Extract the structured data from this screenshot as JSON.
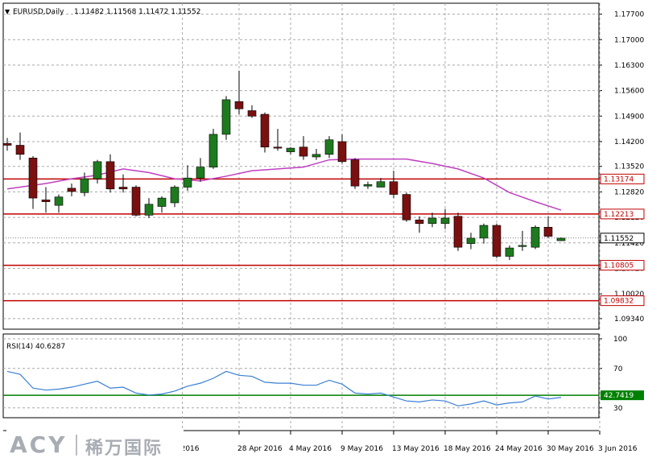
{
  "header": {
    "symbol_label": "EURUSD,Daily",
    "ohlc_label": "1.11482 1.11568 1.11472 1.11552",
    "arrow_glyph": "▼"
  },
  "chart_data": {
    "type": "candlestick",
    "symbol": "EURUSD",
    "timeframe": "Daily",
    "price_axis": {
      "range": [
        1.0905,
        1.18
      ],
      "ticks": [
        "1.17700",
        "1.17000",
        "1.16300",
        "1.15600",
        "1.14900",
        "1.14200",
        "1.13520",
        "1.12820",
        "1.12120",
        "1.11420",
        "1.10720",
        "1.10020",
        "1.09340"
      ]
    },
    "x_axis": {
      "labels": [
        {
          "text": "2016",
          "index": 13.6
        },
        {
          "text": "28 Apr 2016",
          "index": 18
        },
        {
          "text": "4 May 2016",
          "index": 22
        },
        {
          "text": "9 May 2016",
          "index": 26
        },
        {
          "text": "13 May 2016",
          "index": 30
        },
        {
          "text": "18 May 2016",
          "index": 34
        },
        {
          "text": "24 May 2016",
          "index": 38
        },
        {
          "text": "30 May 2016",
          "index": 42
        },
        {
          "text": "3 Jun 2016",
          "index": 46
        }
      ]
    },
    "candles": [
      {
        "o": 1.1415,
        "h": 1.143,
        "l": 1.1395,
        "c": 1.141
      },
      {
        "o": 1.141,
        "h": 1.1445,
        "l": 1.137,
        "c": 1.1385
      },
      {
        "o": 1.1375,
        "h": 1.138,
        "l": 1.1235,
        "c": 1.1265
      },
      {
        "o": 1.126,
        "h": 1.1295,
        "l": 1.1225,
        "c": 1.1255
      },
      {
        "o": 1.1245,
        "h": 1.1275,
        "l": 1.1225,
        "c": 1.1268
      },
      {
        "o": 1.1292,
        "h": 1.1305,
        "l": 1.127,
        "c": 1.1283
      },
      {
        "o": 1.128,
        "h": 1.1335,
        "l": 1.127,
        "c": 1.1318
      },
      {
        "o": 1.1318,
        "h": 1.137,
        "l": 1.1305,
        "c": 1.1365
      },
      {
        "o": 1.1365,
        "h": 1.1385,
        "l": 1.128,
        "c": 1.129
      },
      {
        "o": 1.1295,
        "h": 1.133,
        "l": 1.128,
        "c": 1.129
      },
      {
        "o": 1.1295,
        "h": 1.13,
        "l": 1.1215,
        "c": 1.1218
      },
      {
        "o": 1.1218,
        "h": 1.1265,
        "l": 1.121,
        "c": 1.1248
      },
      {
        "o": 1.1242,
        "h": 1.127,
        "l": 1.1225,
        "c": 1.1265
      },
      {
        "o": 1.1252,
        "h": 1.13,
        "l": 1.124,
        "c": 1.1295
      },
      {
        "o": 1.1295,
        "h": 1.1355,
        "l": 1.1285,
        "c": 1.132
      },
      {
        "o": 1.132,
        "h": 1.1375,
        "l": 1.131,
        "c": 1.135
      },
      {
        "o": 1.135,
        "h": 1.1455,
        "l": 1.1345,
        "c": 1.144
      },
      {
        "o": 1.144,
        "h": 1.1545,
        "l": 1.1425,
        "c": 1.1535
      },
      {
        "o": 1.153,
        "h": 1.1615,
        "l": 1.1495,
        "c": 1.151
      },
      {
        "o": 1.1505,
        "h": 1.152,
        "l": 1.1485,
        "c": 1.149
      },
      {
        "o": 1.1495,
        "h": 1.15,
        "l": 1.139,
        "c": 1.1405
      },
      {
        "o": 1.1405,
        "h": 1.1455,
        "l": 1.1395,
        "c": 1.1402
      },
      {
        "o": 1.1392,
        "h": 1.1405,
        "l": 1.1385,
        "c": 1.1402
      },
      {
        "o": 1.1405,
        "h": 1.1435,
        "l": 1.137,
        "c": 1.138
      },
      {
        "o": 1.1378,
        "h": 1.14,
        "l": 1.137,
        "c": 1.1385
      },
      {
        "o": 1.1385,
        "h": 1.1435,
        "l": 1.1375,
        "c": 1.1425
      },
      {
        "o": 1.142,
        "h": 1.144,
        "l": 1.136,
        "c": 1.1365
      },
      {
        "o": 1.137,
        "h": 1.1375,
        "l": 1.129,
        "c": 1.1298
      },
      {
        "o": 1.1298,
        "h": 1.131,
        "l": 1.129,
        "c": 1.1302
      },
      {
        "o": 1.1295,
        "h": 1.132,
        "l": 1.1295,
        "c": 1.131
      },
      {
        "o": 1.131,
        "h": 1.134,
        "l": 1.1265,
        "c": 1.1275
      },
      {
        "o": 1.1275,
        "h": 1.128,
        "l": 1.12,
        "c": 1.1205
      },
      {
        "o": 1.1205,
        "h": 1.1215,
        "l": 1.117,
        "c": 1.1195
      },
      {
        "o": 1.1195,
        "h": 1.1225,
        "l": 1.1185,
        "c": 1.121
      },
      {
        "o": 1.1195,
        "h": 1.1235,
        "l": 1.118,
        "c": 1.121
      },
      {
        "o": 1.1215,
        "h": 1.1225,
        "l": 1.112,
        "c": 1.113
      },
      {
        "o": 1.114,
        "h": 1.117,
        "l": 1.1125,
        "c": 1.1155
      },
      {
        "o": 1.1155,
        "h": 1.1195,
        "l": 1.114,
        "c": 1.119
      },
      {
        "o": 1.119,
        "h": 1.1195,
        "l": 1.11,
        "c": 1.1105
      },
      {
        "o": 1.1105,
        "h": 1.1135,
        "l": 1.1095,
        "c": 1.1128
      },
      {
        "o": 1.1132,
        "h": 1.1175,
        "l": 1.112,
        "c": 1.1135
      },
      {
        "o": 1.113,
        "h": 1.119,
        "l": 1.1125,
        "c": 1.1185
      },
      {
        "o": 1.1185,
        "h": 1.1215,
        "l": 1.1155,
        "c": 1.116
      },
      {
        "o": 1.1148,
        "h": 1.1157,
        "l": 1.1147,
        "c": 1.1155
      }
    ],
    "moving_average": {
      "color": "#c040c0",
      "values": [
        {
          "i": 0,
          "v": 1.129
        },
        {
          "i": 3,
          "v": 1.1305
        },
        {
          "i": 5,
          "v": 1.1318
        },
        {
          "i": 7,
          "v": 1.1328
        },
        {
          "i": 9,
          "v": 1.1345
        },
        {
          "i": 11,
          "v": 1.1335
        },
        {
          "i": 13,
          "v": 1.1318
        },
        {
          "i": 15,
          "v": 1.1312
        },
        {
          "i": 17,
          "v": 1.1325
        },
        {
          "i": 19,
          "v": 1.134
        },
        {
          "i": 21,
          "v": 1.1345
        },
        {
          "i": 23,
          "v": 1.135
        },
        {
          "i": 25,
          "v": 1.137
        },
        {
          "i": 27,
          "v": 1.1372
        },
        {
          "i": 29,
          "v": 1.1372
        },
        {
          "i": 31,
          "v": 1.1372
        },
        {
          "i": 33,
          "v": 1.136
        },
        {
          "i": 35,
          "v": 1.1345
        },
        {
          "i": 37,
          "v": 1.132
        },
        {
          "i": 39,
          "v": 1.128
        },
        {
          "i": 41,
          "v": 1.1255
        },
        {
          "i": 43,
          "v": 1.1232
        }
      ]
    },
    "horizontal_levels": [
      {
        "value": 1.13174,
        "label": "1.13174",
        "color": "#c00000"
      },
      {
        "value": 1.12213,
        "label": "1.12213",
        "color": "#c00000"
      },
      {
        "value": 1.10805,
        "label": "1.10805",
        "color": "#c00000"
      },
      {
        "value": 1.09832,
        "label": "1.09832",
        "color": "#c00000"
      }
    ],
    "current_price": {
      "value": 1.11552,
      "label": "1.11552"
    },
    "rsi": {
      "label": "RSI(14) 40.6287",
      "range": [
        20,
        100
      ],
      "ticks": [
        "100",
        "70",
        "30"
      ],
      "level": {
        "value": 42.7419,
        "label": "42.7419",
        "color": "#008000"
      },
      "color": "#3a7fd5",
      "values": [
        {
          "i": 0,
          "v": 67
        },
        {
          "i": 1,
          "v": 64
        },
        {
          "i": 2,
          "v": 50
        },
        {
          "i": 3,
          "v": 48
        },
        {
          "i": 4,
          "v": 49
        },
        {
          "i": 5,
          "v": 51
        },
        {
          "i": 6,
          "v": 54
        },
        {
          "i": 7,
          "v": 57
        },
        {
          "i": 8,
          "v": 50
        },
        {
          "i": 9,
          "v": 51
        },
        {
          "i": 10,
          "v": 45
        },
        {
          "i": 11,
          "v": 43
        },
        {
          "i": 12,
          "v": 44
        },
        {
          "i": 13,
          "v": 47
        },
        {
          "i": 14,
          "v": 52
        },
        {
          "i": 15,
          "v": 55
        },
        {
          "i": 16,
          "v": 60
        },
        {
          "i": 17,
          "v": 67
        },
        {
          "i": 18,
          "v": 63
        },
        {
          "i": 19,
          "v": 62
        },
        {
          "i": 20,
          "v": 56
        },
        {
          "i": 21,
          "v": 55
        },
        {
          "i": 22,
          "v": 55
        },
        {
          "i": 23,
          "v": 53
        },
        {
          "i": 24,
          "v": 53
        },
        {
          "i": 25,
          "v": 58
        },
        {
          "i": 26,
          "v": 54
        },
        {
          "i": 27,
          "v": 45
        },
        {
          "i": 28,
          "v": 44
        },
        {
          "i": 29,
          "v": 45
        },
        {
          "i": 30,
          "v": 41
        },
        {
          "i": 31,
          "v": 37
        },
        {
          "i": 32,
          "v": 36
        },
        {
          "i": 33,
          "v": 38
        },
        {
          "i": 34,
          "v": 37
        },
        {
          "i": 35,
          "v": 32
        },
        {
          "i": 36,
          "v": 34
        },
        {
          "i": 37,
          "v": 37
        },
        {
          "i": 38,
          "v": 33
        },
        {
          "i": 39,
          "v": 35
        },
        {
          "i": 40,
          "v": 36
        },
        {
          "i": 41,
          "v": 42
        },
        {
          "i": 42,
          "v": 39
        },
        {
          "i": 43,
          "v": 40.6
        }
      ]
    },
    "colors": {
      "bull": "#1e7a1e",
      "bear": "#7a1010",
      "grid": "#a8a8a8",
      "axis": "#000000"
    },
    "grid": true
  },
  "watermark": {
    "brand": "ACY",
    "chinese": "稀万国际"
  }
}
